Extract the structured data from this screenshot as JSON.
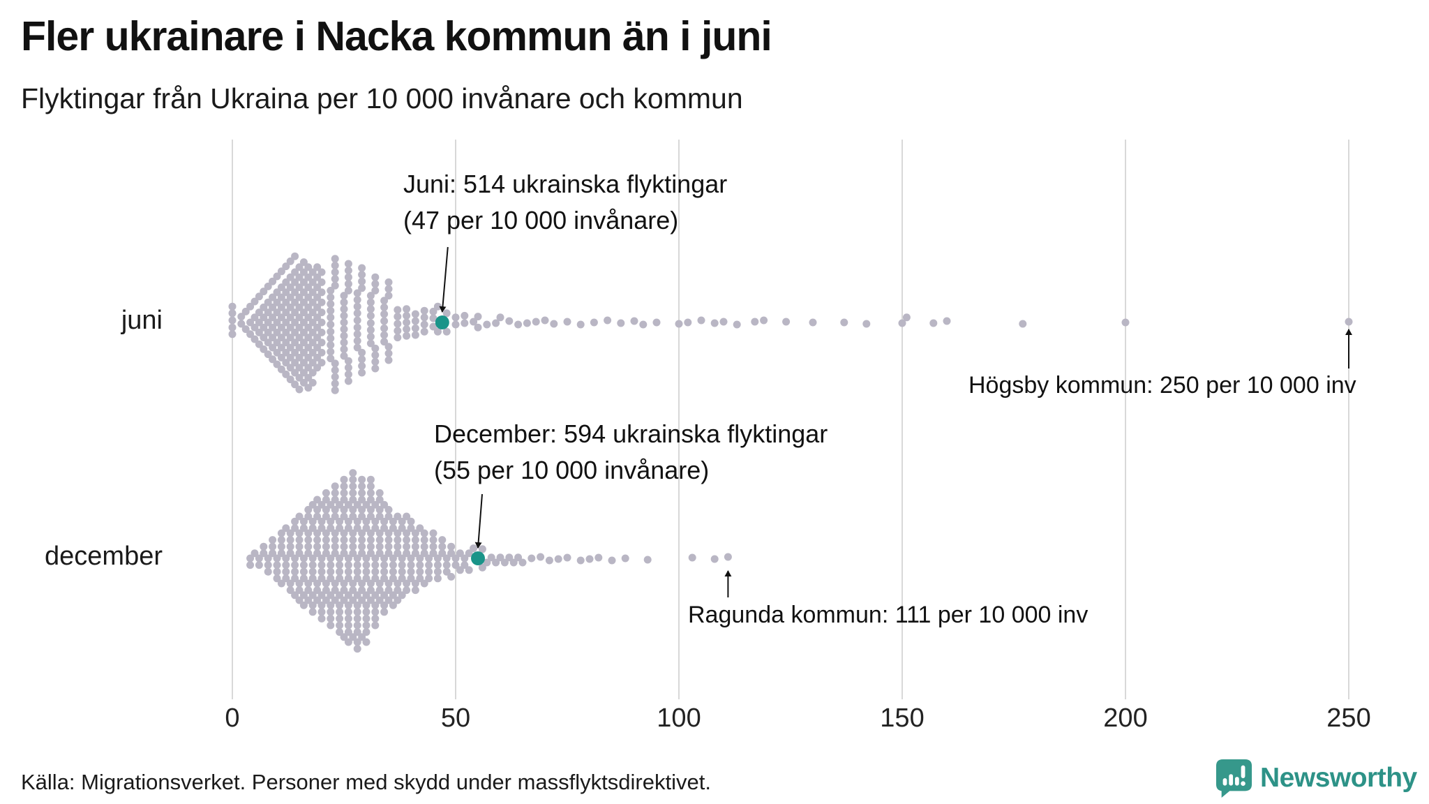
{
  "header": {
    "title": "Fler ukrainare i Nacka kommun än i juni",
    "subtitle": "Flyktingar från Ukraina per 10 000 invånare och kommun"
  },
  "footer": {
    "source": "Källa: Migrationsverket. Personer med skydd under massflyktsdirektivet."
  },
  "logo": {
    "name": "Newsworthy",
    "icon_color": "#36988b",
    "text_color": "#2d9287"
  },
  "chart_data": {
    "type": "beeswarm",
    "title": "Fler ukrainare i Nacka kommun än i juni",
    "subtitle": "Flyktingar från Ukraina per 10 000 invånare och kommun",
    "unit": "flyktingar per 10 000 invånare och kommun",
    "x_ticks": [
      0,
      50,
      100,
      150,
      200,
      250
    ],
    "x_range": [
      0,
      250
    ],
    "grid": true,
    "colors": {
      "dot": "#b9b6c4",
      "highlight": "#1a9489",
      "gridline": "#d8d8d8",
      "arrow": "#111111"
    },
    "rows": [
      {
        "label": "juni",
        "highlight": {
          "name": "Nacka",
          "value": 47,
          "refugees": 514
        },
        "values_hist": [
          [
            0,
            5
          ],
          [
            2,
            2
          ],
          [
            3,
            2
          ],
          [
            4,
            3
          ],
          [
            5,
            4
          ],
          [
            6,
            5
          ],
          [
            7,
            6
          ],
          [
            8,
            7
          ],
          [
            9,
            8
          ],
          [
            10,
            9
          ],
          [
            11,
            10
          ],
          [
            12,
            11
          ],
          [
            13,
            12
          ],
          [
            14,
            13
          ],
          [
            15,
            13
          ],
          [
            16,
            13
          ],
          [
            17,
            13
          ],
          [
            18,
            12
          ],
          [
            19,
            11
          ],
          [
            20,
            10
          ],
          [
            22,
            11
          ],
          [
            23,
            10
          ],
          [
            25,
            10
          ],
          [
            26,
            9
          ],
          [
            28,
            9
          ],
          [
            29,
            8
          ],
          [
            31,
            8
          ],
          [
            32,
            7
          ],
          [
            34,
            7
          ],
          [
            35,
            6
          ],
          [
            37,
            5
          ],
          [
            39,
            5
          ],
          [
            41,
            4
          ],
          [
            43,
            4
          ],
          [
            45,
            3
          ],
          [
            46,
            2
          ],
          [
            48,
            2
          ],
          [
            50,
            2
          ],
          [
            52,
            2
          ],
          [
            54,
            1
          ],
          [
            55,
            2
          ],
          [
            57,
            1
          ],
          [
            59,
            1
          ],
          [
            60,
            1
          ],
          [
            62,
            1
          ],
          [
            64,
            1
          ],
          [
            66,
            1
          ],
          [
            68,
            1
          ],
          [
            70,
            1
          ],
          [
            72,
            1
          ],
          [
            75,
            1
          ],
          [
            78,
            1
          ],
          [
            81,
            1
          ],
          [
            84,
            1
          ],
          [
            87,
            1
          ],
          [
            90,
            1
          ],
          [
            92,
            1
          ],
          [
            95,
            1
          ],
          [
            100,
            1
          ],
          [
            102,
            1
          ],
          [
            105,
            1
          ],
          [
            108,
            1
          ],
          [
            110,
            1
          ],
          [
            113,
            1
          ],
          [
            117,
            1
          ],
          [
            119,
            1
          ],
          [
            124,
            1
          ],
          [
            130,
            1
          ],
          [
            137,
            1
          ],
          [
            142,
            1
          ],
          [
            150,
            1
          ],
          [
            151,
            1
          ],
          [
            157,
            1
          ],
          [
            160,
            1
          ],
          [
            177,
            1
          ],
          [
            200,
            1
          ],
          [
            250,
            1
          ]
        ]
      },
      {
        "label": "december",
        "highlight": {
          "name": "Nacka",
          "value": 55,
          "refugees": 594
        },
        "values_hist": [
          [
            4,
            2
          ],
          [
            5,
            1
          ],
          [
            6,
            2
          ],
          [
            7,
            2
          ],
          [
            8,
            3
          ],
          [
            9,
            3
          ],
          [
            10,
            4
          ],
          [
            11,
            5
          ],
          [
            12,
            5
          ],
          [
            13,
            6
          ],
          [
            14,
            7
          ],
          [
            15,
            8
          ],
          [
            16,
            8
          ],
          [
            17,
            9
          ],
          [
            18,
            10
          ],
          [
            19,
            10
          ],
          [
            20,
            11
          ],
          [
            21,
            11
          ],
          [
            22,
            12
          ],
          [
            23,
            12
          ],
          [
            24,
            13
          ],
          [
            25,
            14
          ],
          [
            26,
            14
          ],
          [
            27,
            15
          ],
          [
            28,
            15
          ],
          [
            29,
            14
          ],
          [
            30,
            14
          ],
          [
            31,
            13
          ],
          [
            32,
            12
          ],
          [
            33,
            11
          ],
          [
            34,
            10
          ],
          [
            35,
            9
          ],
          [
            36,
            8
          ],
          [
            37,
            8
          ],
          [
            38,
            7
          ],
          [
            39,
            7
          ],
          [
            40,
            6
          ],
          [
            41,
            6
          ],
          [
            42,
            5
          ],
          [
            43,
            5
          ],
          [
            44,
            4
          ],
          [
            45,
            4
          ],
          [
            46,
            4
          ],
          [
            47,
            3
          ],
          [
            48,
            3
          ],
          [
            49,
            3
          ],
          [
            50,
            2
          ],
          [
            51,
            2
          ],
          [
            52,
            2
          ],
          [
            53,
            2
          ],
          [
            54,
            1
          ],
          [
            56,
            2
          ],
          [
            57,
            1
          ],
          [
            58,
            1
          ],
          [
            59,
            1
          ],
          [
            60,
            1
          ],
          [
            61,
            1
          ],
          [
            62,
            1
          ],
          [
            63,
            1
          ],
          [
            64,
            1
          ],
          [
            65,
            1
          ],
          [
            67,
            1
          ],
          [
            69,
            1
          ],
          [
            71,
            1
          ],
          [
            73,
            1
          ],
          [
            75,
            1
          ],
          [
            78,
            1
          ],
          [
            80,
            1
          ],
          [
            82,
            1
          ],
          [
            85,
            1
          ],
          [
            88,
            1
          ],
          [
            93,
            1
          ],
          [
            103,
            1
          ],
          [
            108,
            1
          ],
          [
            111,
            1
          ]
        ]
      }
    ],
    "annotations": [
      {
        "id": "juni-nacka",
        "row": 0,
        "value": 47,
        "direction": "down",
        "lines": [
          "Juni: 514 ukrainska flyktingar",
          "(47 per 10 000 invånare)"
        ]
      },
      {
        "id": "december-nacka",
        "row": 1,
        "value": 55,
        "direction": "down",
        "lines": [
          "December: 594 ukrainska flyktingar",
          "(55 per 10 000 invånare)"
        ]
      },
      {
        "id": "hogsby",
        "row": 0,
        "value": 250,
        "direction": "up",
        "lines": [
          "Högsby kommun: 250 per 10 000 inv"
        ]
      },
      {
        "id": "ragunda",
        "row": 1,
        "value": 111,
        "direction": "up",
        "lines": [
          "Ragunda kommun: 111 per 10 000 inv"
        ]
      }
    ]
  }
}
